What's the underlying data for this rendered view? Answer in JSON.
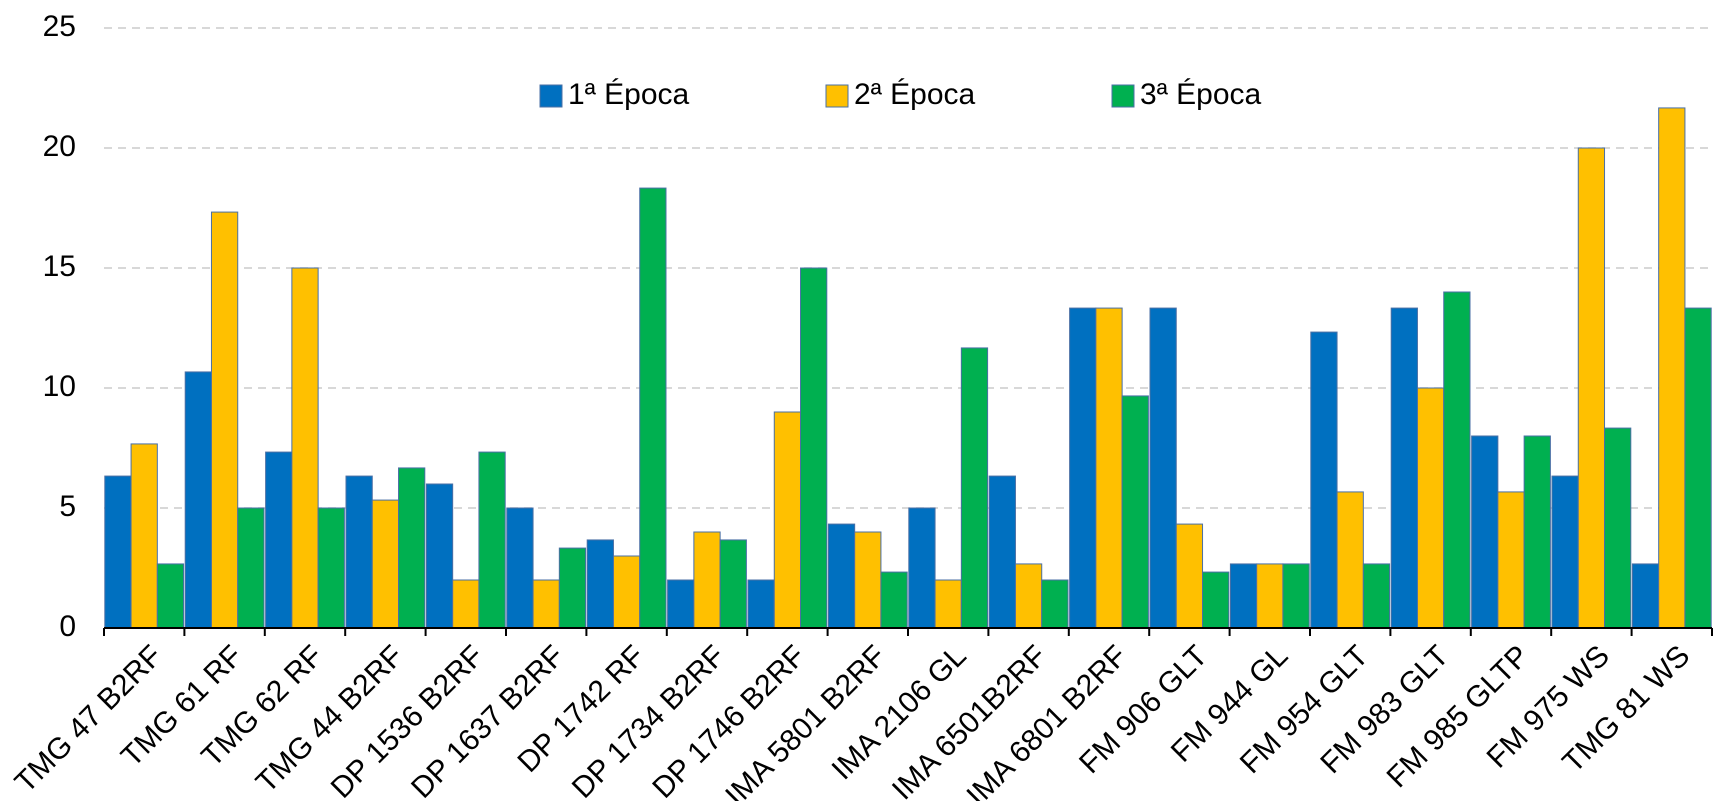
{
  "chart_data": {
    "type": "bar",
    "categories": [
      "TMG 47 B2RF",
      "TMG 61 RF",
      "TMG 62 RF",
      "TMG 44 B2RF",
      "DP 1536 B2RF",
      "DP 1637 B2RF",
      "DP 1742 RF",
      "DP 1734 B2RF",
      "DP 1746 B2RF",
      "IMA 5801 B2RF",
      "IMA 2106 GL",
      "IMA 6501B2RF",
      "IMA 6801 B2RF",
      "FM 906 GLT",
      "FM 944 GL",
      "FM 954 GLT",
      "FM 983 GLT",
      "FM 985 GLTP",
      "FM 975 WS",
      "TMG 81 WS"
    ],
    "series": [
      {
        "name": "1ª Época",
        "color": "#0070c0",
        "values": [
          6.33,
          10.67,
          7.33,
          6.33,
          6,
          5,
          3.67,
          2,
          2,
          4.33,
          5,
          6.33,
          13.33,
          13.33,
          2.67,
          12.33,
          13.33,
          8,
          6.33,
          2.67
        ]
      },
      {
        "name": "2ª Época",
        "color": "#ffc000",
        "values": [
          7.67,
          17.33,
          15,
          5.33,
          2,
          2,
          3,
          4,
          9,
          4,
          2,
          2.67,
          13.33,
          4.33,
          2.67,
          5.67,
          10,
          5.67,
          20,
          21.67
        ]
      },
      {
        "name": "3ª Época",
        "color": "#00b050",
        "values": [
          2.67,
          5,
          5,
          6.67,
          7.33,
          3.33,
          18.33,
          3.67,
          15,
          2.33,
          11.67,
          2,
          9.67,
          2.33,
          2.67,
          2.67,
          14,
          8,
          8.33,
          13.33
        ]
      }
    ],
    "ylim": [
      0,
      25
    ],
    "yticks": [
      0,
      5,
      10,
      15,
      20,
      25
    ],
    "grid": true,
    "legend": "top"
  }
}
